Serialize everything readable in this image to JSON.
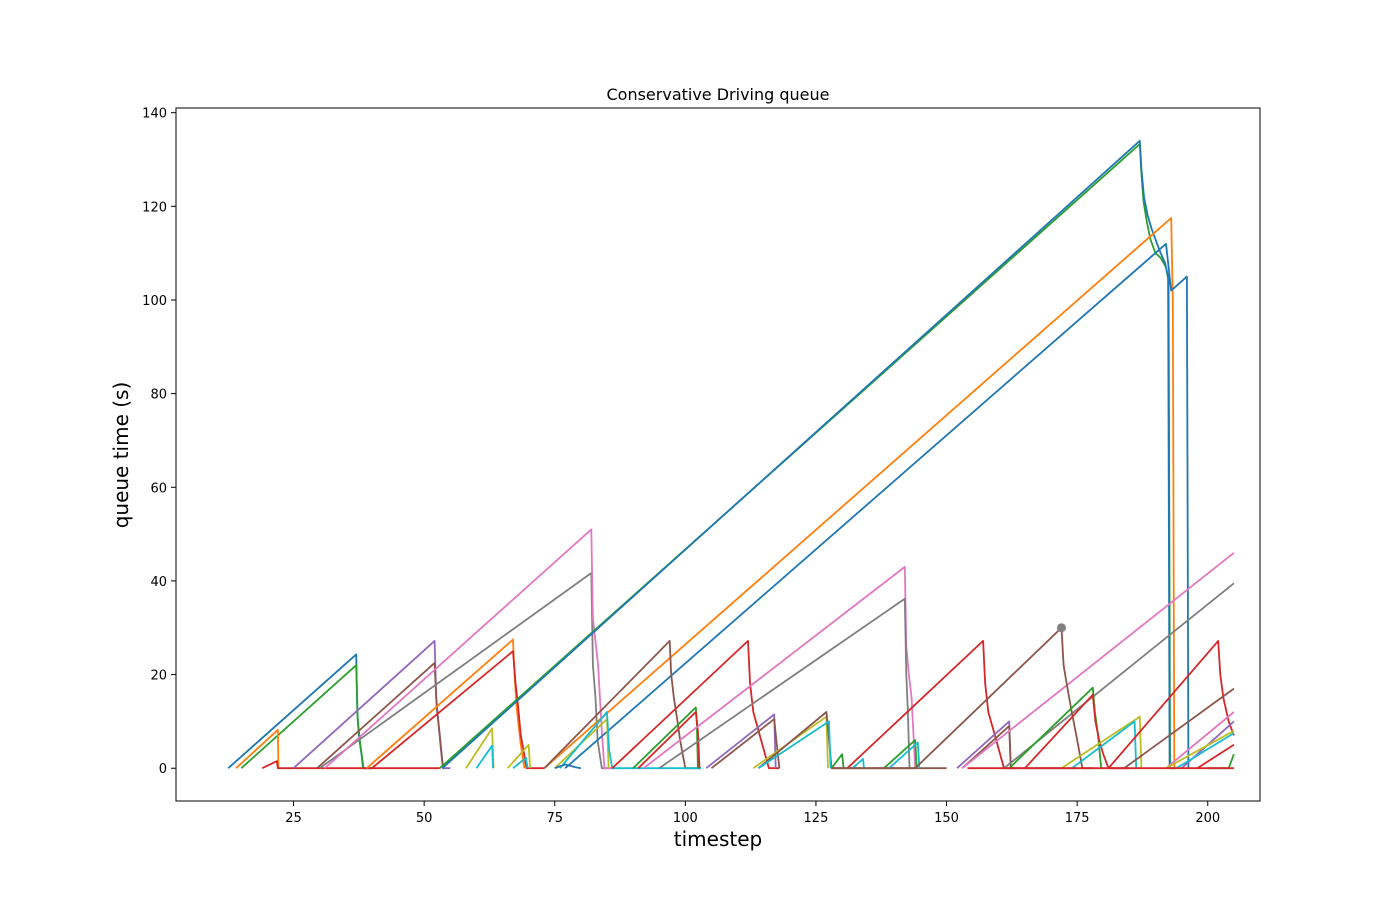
{
  "chart_data": {
    "type": "line",
    "title": "Conservative Driving queue",
    "xlabel": "timestep",
    "ylabel": "queue time (s)",
    "xlim": [
      2.5,
      210
    ],
    "ylim": [
      -7,
      141
    ],
    "xticks": [
      25,
      50,
      75,
      100,
      125,
      150,
      175,
      200
    ],
    "yticks": [
      0,
      20,
      40,
      60,
      80,
      100,
      120,
      140
    ],
    "grid": false,
    "legend": "none",
    "series": [
      {
        "color": "#1f77b4",
        "points": [
          [
            12.5,
            0
          ],
          [
            37,
            24.3
          ],
          [
            37.2,
            12
          ],
          [
            37.5,
            7
          ],
          [
            38,
            3
          ],
          [
            38.3,
            0
          ],
          [
            40,
            0
          ]
        ]
      },
      {
        "color": "#2ca02c",
        "points": [
          [
            15,
            0
          ],
          [
            37,
            22
          ],
          [
            37.3,
            10
          ],
          [
            37.8,
            5
          ],
          [
            38.4,
            0
          ],
          [
            40,
            0
          ]
        ]
      },
      {
        "color": "#ff7f0e",
        "points": [
          [
            14,
            0
          ],
          [
            22,
            8.2
          ],
          [
            22.1,
            0
          ]
        ]
      },
      {
        "color": "#d62728",
        "points": [
          [
            19,
            0
          ],
          [
            21.8,
            1.5
          ],
          [
            22,
            0
          ],
          [
            53,
            0
          ]
        ]
      },
      {
        "color": "#9467bd",
        "points": [
          [
            25,
            0
          ],
          [
            52,
            27.2
          ],
          [
            52.3,
            15
          ],
          [
            52.8,
            9
          ],
          [
            53.2,
            4
          ],
          [
            53.6,
            0
          ],
          [
            55,
            0
          ]
        ]
      },
      {
        "color": "#8c564b",
        "points": [
          [
            29.5,
            0
          ],
          [
            52,
            22.5
          ],
          [
            52.4,
            13
          ],
          [
            53,
            7
          ],
          [
            53.6,
            0
          ]
        ]
      },
      {
        "color": "#7f7f7f",
        "points": [
          [
            30,
            0
          ],
          [
            82,
            41.7
          ],
          [
            82.3,
            22
          ],
          [
            82.8,
            15
          ],
          [
            83.2,
            6
          ],
          [
            84,
            0
          ],
          [
            86,
            0
          ]
        ]
      },
      {
        "color": "#e377c2",
        "points": [
          [
            31,
            0
          ],
          [
            82,
            51
          ],
          [
            82.3,
            32
          ],
          [
            82.8,
            27
          ],
          [
            83.3,
            22
          ],
          [
            84,
            8
          ],
          [
            84.5,
            0
          ],
          [
            86,
            0
          ]
        ]
      },
      {
        "color": "#ff7f0e",
        "points": [
          [
            39,
            0
          ],
          [
            67,
            27.5
          ],
          [
            67.3,
            20
          ],
          [
            67.8,
            12
          ],
          [
            68.5,
            5
          ],
          [
            69.2,
            0
          ]
        ]
      },
      {
        "color": "#d62728",
        "points": [
          [
            40,
            0
          ],
          [
            67,
            25
          ],
          [
            67.5,
            18
          ],
          [
            68,
            13
          ],
          [
            68.5,
            7
          ],
          [
            69,
            4
          ],
          [
            69.6,
            0
          ],
          [
            73,
            0
          ]
        ]
      },
      {
        "color": "#2ca02c",
        "points": [
          [
            53,
            0
          ],
          [
            187,
            133.3
          ],
          [
            187.3,
            127
          ],
          [
            187.7,
            121
          ],
          [
            188.3,
            117
          ],
          [
            189,
            113
          ],
          [
            190,
            110
          ],
          [
            191,
            109
          ],
          [
            192,
            107
          ],
          [
            192.5,
            104
          ],
          [
            192.8,
            0
          ]
        ]
      },
      {
        "color": "#1f77b4",
        "points": [
          [
            53.5,
            0
          ],
          [
            187,
            134
          ],
          [
            187.3,
            128
          ],
          [
            187.8,
            122
          ],
          [
            188.5,
            118
          ],
          [
            189.3,
            115
          ],
          [
            190.3,
            112
          ],
          [
            191,
            110
          ],
          [
            191.8,
            108
          ],
          [
            192.4,
            105
          ],
          [
            192.7,
            0
          ],
          [
            194,
            0
          ]
        ]
      },
      {
        "color": "#ff7f0e",
        "points": [
          [
            73,
            0
          ],
          [
            193,
            117.5
          ],
          [
            193.3,
            100
          ],
          [
            193.6,
            0
          ]
        ]
      },
      {
        "color": "#1f77b4",
        "points": [
          [
            77,
            0
          ],
          [
            192,
            112
          ],
          [
            193,
            102
          ],
          [
            196,
            105
          ],
          [
            196.3,
            0
          ]
        ]
      },
      {
        "color": "#bcbd22",
        "points": [
          [
            58,
            0
          ],
          [
            63,
            8.5
          ],
          [
            63.3,
            0
          ]
        ]
      },
      {
        "color": "#17becf",
        "points": [
          [
            60,
            0
          ],
          [
            63,
            4.8
          ],
          [
            63.2,
            0
          ]
        ]
      },
      {
        "color": "#bcbd22",
        "points": [
          [
            66,
            0
          ],
          [
            70,
            5
          ],
          [
            70.3,
            0
          ]
        ]
      },
      {
        "color": "#17becf",
        "points": [
          [
            67,
            0
          ],
          [
            69.5,
            2.2
          ],
          [
            69.8,
            0
          ]
        ]
      },
      {
        "color": "#8c564b",
        "points": [
          [
            73,
            0
          ],
          [
            97,
            27.2
          ],
          [
            97.3,
            20
          ],
          [
            97.8,
            15
          ],
          [
            98.5,
            10
          ],
          [
            99,
            6
          ],
          [
            99.5,
            3
          ],
          [
            100,
            0
          ],
          [
            103,
            0
          ]
        ]
      },
      {
        "color": "#bcbd22",
        "points": [
          [
            75,
            0
          ],
          [
            85,
            10.5
          ],
          [
            85.3,
            0
          ]
        ]
      },
      {
        "color": "#17becf",
        "points": [
          [
            76,
            0
          ],
          [
            85,
            12
          ],
          [
            85.4,
            4
          ],
          [
            86,
            0
          ],
          [
            103,
            0
          ]
        ]
      },
      {
        "color": "#1f77b4",
        "points": [
          [
            75,
            0
          ],
          [
            77,
            0.8
          ],
          [
            79,
            0.2
          ],
          [
            80,
            0
          ]
        ]
      },
      {
        "color": "#d62728",
        "points": [
          [
            86,
            0
          ],
          [
            112,
            27.2
          ],
          [
            112.4,
            18
          ],
          [
            113,
            12
          ],
          [
            114,
            8
          ],
          [
            115,
            4
          ],
          [
            116,
            0
          ],
          [
            118,
            0
          ]
        ]
      },
      {
        "color": "#2ca02c",
        "points": [
          [
            90,
            0
          ],
          [
            102,
            13
          ],
          [
            102.2,
            10
          ],
          [
            102.4,
            0
          ]
        ]
      },
      {
        "color": "#d62728",
        "points": [
          [
            91,
            0
          ],
          [
            102,
            12
          ],
          [
            102.4,
            8
          ],
          [
            102.7,
            0
          ]
        ]
      },
      {
        "color": "#e377c2",
        "points": [
          [
            92,
            0
          ],
          [
            142,
            43
          ],
          [
            142.3,
            26
          ],
          [
            142.8,
            20
          ],
          [
            143.3,
            15
          ],
          [
            144,
            0
          ]
        ]
      },
      {
        "color": "#7f7f7f",
        "points": [
          [
            95,
            0
          ],
          [
            142,
            36.2
          ],
          [
            142.3,
            20
          ],
          [
            142.6,
            12
          ],
          [
            142.9,
            0
          ]
        ]
      },
      {
        "color": "#9467bd",
        "points": [
          [
            104,
            0
          ],
          [
            117,
            11.5
          ],
          [
            117.3,
            0
          ]
        ]
      },
      {
        "color": "#8c564b",
        "points": [
          [
            105,
            0
          ],
          [
            117,
            10.5
          ],
          [
            117.5,
            5
          ],
          [
            118,
            0
          ]
        ]
      },
      {
        "color": "#bcbd22",
        "points": [
          [
            113,
            0
          ],
          [
            127,
            11
          ],
          [
            127.3,
            0
          ]
        ]
      },
      {
        "color": "#8c564b",
        "points": [
          [
            114,
            0
          ],
          [
            127,
            12
          ],
          [
            127.5,
            6
          ],
          [
            128,
            0
          ],
          [
            150,
            0
          ]
        ]
      },
      {
        "color": "#17becf",
        "points": [
          [
            114,
            0
          ],
          [
            127.5,
            10
          ],
          [
            127.8,
            0
          ]
        ]
      },
      {
        "color": "#2ca02c",
        "points": [
          [
            128,
            0
          ],
          [
            130,
            3
          ],
          [
            130.3,
            0
          ]
        ]
      },
      {
        "color": "#17becf",
        "points": [
          [
            132,
            0
          ],
          [
            134,
            2
          ],
          [
            134.2,
            0
          ]
        ]
      },
      {
        "color": "#d62728",
        "points": [
          [
            131,
            0
          ],
          [
            157,
            27.2
          ],
          [
            157.4,
            18
          ],
          [
            158,
            12
          ],
          [
            159,
            8
          ],
          [
            160,
            4
          ],
          [
            161,
            0
          ],
          [
            163,
            0
          ]
        ]
      },
      {
        "color": "#2ca02c",
        "points": [
          [
            138,
            0
          ],
          [
            144,
            6
          ],
          [
            144.3,
            0
          ]
        ]
      },
      {
        "color": "#17becf",
        "points": [
          [
            139,
            0
          ],
          [
            144.5,
            5.5
          ],
          [
            144.8,
            0
          ]
        ]
      },
      {
        "color": "#9467bd",
        "points": [
          [
            152,
            0
          ],
          [
            162,
            10
          ],
          [
            162.3,
            0
          ]
        ]
      },
      {
        "color": "#8c564b",
        "points": [
          [
            153,
            0
          ],
          [
            162,
            9
          ],
          [
            162.3,
            0
          ],
          [
            175,
            0
          ]
        ]
      },
      {
        "color": "#e377c2",
        "points": [
          [
            153,
            0
          ],
          [
            205,
            46
          ]
        ]
      },
      {
        "color": "#7f7f7f",
        "points": [
          [
            161,
            0
          ],
          [
            205,
            39.5
          ]
        ]
      },
      {
        "color": "#8c564b",
        "points": [
          [
            144,
            0
          ],
          [
            172,
            30
          ],
          [
            172.4,
            22
          ],
          [
            173,
            18
          ],
          [
            173.8,
            13
          ],
          [
            174.5,
            9
          ],
          [
            175,
            6
          ],
          [
            175.5,
            3
          ],
          [
            176,
            0
          ],
          [
            178,
            0
          ]
        ]
      },
      {
        "color": "#2ca02c",
        "points": [
          [
            162,
            0
          ],
          [
            178,
            17.2
          ],
          [
            178.4,
            12
          ],
          [
            179,
            7
          ],
          [
            179.6,
            0
          ],
          [
            180,
            0
          ]
        ]
      },
      {
        "color": "#d62728",
        "points": [
          [
            165,
            0
          ],
          [
            178,
            15.7
          ],
          [
            178.5,
            10
          ],
          [
            179.2,
            6
          ],
          [
            180,
            3
          ],
          [
            181,
            0
          ],
          [
            185,
            0
          ]
        ]
      },
      {
        "color": "#bcbd22",
        "points": [
          [
            172,
            0
          ],
          [
            187,
            11
          ],
          [
            187.3,
            0
          ]
        ]
      },
      {
        "color": "#17becf",
        "points": [
          [
            174,
            0
          ],
          [
            186,
            10
          ],
          [
            186.3,
            0
          ]
        ]
      },
      {
        "color": "#d62728",
        "points": [
          [
            181,
            0
          ],
          [
            202,
            27.2
          ],
          [
            202.4,
            20
          ],
          [
            203,
            15
          ],
          [
            204,
            10
          ],
          [
            205,
            7
          ]
        ]
      },
      {
        "color": "#8c564b",
        "points": [
          [
            184,
            0
          ],
          [
            205,
            17
          ]
        ]
      },
      {
        "color": "#e377c2",
        "points": [
          [
            192,
            0
          ],
          [
            205,
            12
          ]
        ]
      },
      {
        "color": "#9467bd",
        "points": [
          [
            195,
            0
          ],
          [
            205,
            10
          ]
        ]
      },
      {
        "color": "#bcbd22",
        "points": [
          [
            192,
            0
          ],
          [
            205,
            8
          ]
        ]
      },
      {
        "color": "#17becf",
        "points": [
          [
            194,
            0
          ],
          [
            205,
            7.5
          ]
        ]
      },
      {
        "color": "#d62728",
        "points": [
          [
            198,
            0
          ],
          [
            205,
            5
          ]
        ]
      },
      {
        "color": "#2ca02c",
        "points": [
          [
            200,
            0
          ],
          [
            204,
            0
          ],
          [
            205,
            3
          ]
        ]
      },
      {
        "color": "#8c564b",
        "points": [
          [
            128,
            0
          ],
          [
            144,
            0
          ]
        ]
      },
      {
        "color": "#d62728",
        "points": [
          [
            154,
            0
          ],
          [
            205,
            0
          ]
        ]
      }
    ],
    "markers": [
      {
        "color": "#7f7f7f",
        "x": 172,
        "y": 30
      }
    ]
  }
}
